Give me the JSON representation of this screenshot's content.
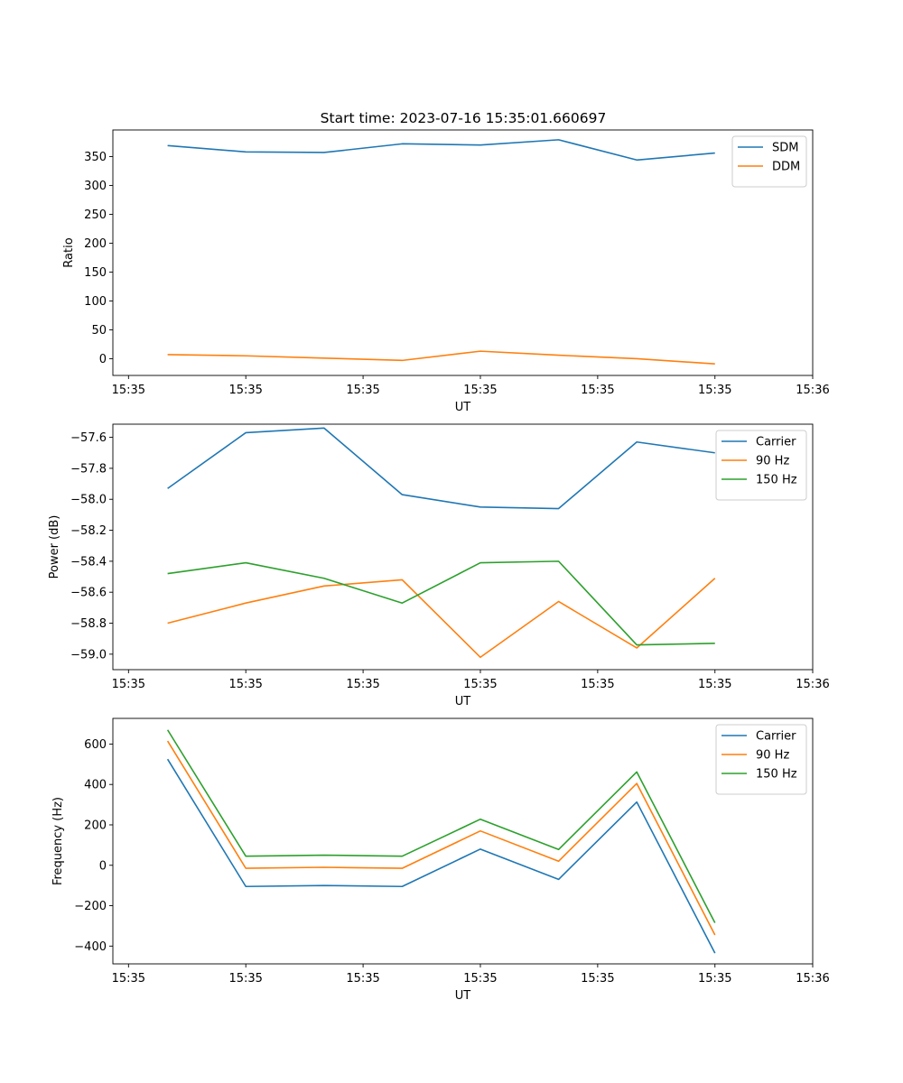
{
  "title": "Start time: 2023-07-16 15:35:01.660697",
  "colors": {
    "blue": "#1f77b4",
    "orange": "#ff7f0e",
    "green": "#2ca02c"
  },
  "chart_data": [
    {
      "type": "line",
      "title": "Start time: 2023-07-16 15:35:01.660697",
      "xlabel": "UT",
      "ylabel": "Ratio",
      "x": [
        1,
        2,
        3,
        4,
        5,
        6,
        7,
        8
      ],
      "xlim": [
        0.3,
        9.25
      ],
      "xticks": [
        0.5,
        2,
        3.5,
        5,
        6.5,
        8,
        9.25
      ],
      "xtick_labels": [
        "15:35",
        "15:35",
        "15:35",
        "15:35",
        "15:35",
        "15:35",
        "15:36"
      ],
      "ylim": [
        -29,
        396
      ],
      "yticks": [
        0,
        50,
        100,
        150,
        200,
        250,
        300,
        350
      ],
      "ytick_labels": [
        "0",
        "50",
        "100",
        "150",
        "200",
        "250",
        "300",
        "350"
      ],
      "legend_position": "top-right",
      "series": [
        {
          "name": "SDM",
          "color": "#1f77b4",
          "values": [
            369,
            358,
            357,
            372,
            370,
            379,
            344,
            356
          ]
        },
        {
          "name": "DDM",
          "color": "#ff7f0e",
          "values": [
            7,
            5,
            1,
            -3,
            13,
            6,
            0,
            -9
          ]
        }
      ]
    },
    {
      "type": "line",
      "title": "",
      "xlabel": "UT",
      "ylabel": "Power (dB)",
      "x": [
        1,
        2,
        3,
        4,
        5,
        6,
        7,
        8
      ],
      "xlim": [
        0.3,
        9.25
      ],
      "xticks": [
        0.5,
        2,
        3.5,
        5,
        6.5,
        8,
        9.25
      ],
      "xtick_labels": [
        "15:35",
        "15:35",
        "15:35",
        "15:35",
        "15:35",
        "15:35",
        "15:36"
      ],
      "ylim": [
        -59.1,
        -57.515
      ],
      "yticks": [
        -59.0,
        -58.8,
        -58.6,
        -58.4,
        -58.2,
        -58.0,
        -57.8,
        -57.6
      ],
      "ytick_labels": [
        "−59.0",
        "−58.8",
        "−58.6",
        "−58.4",
        "−58.2",
        "−58.0",
        "−57.8",
        "−57.6"
      ],
      "legend_position": "top-right",
      "series": [
        {
          "name": "Carrier",
          "color": "#1f77b4",
          "values": [
            -57.93,
            -57.57,
            -57.54,
            -57.97,
            -58.05,
            -58.06,
            -57.63,
            -57.7
          ]
        },
        {
          "name": "90 Hz",
          "color": "#ff7f0e",
          "values": [
            -58.8,
            -58.67,
            -58.56,
            -58.52,
            -59.02,
            -58.66,
            -58.96,
            -58.51
          ]
        },
        {
          "name": "150 Hz",
          "color": "#2ca02c",
          "values": [
            -58.48,
            -58.41,
            -58.51,
            -58.67,
            -58.41,
            -58.4,
            -58.94,
            -58.93
          ]
        }
      ]
    },
    {
      "type": "line",
      "title": "",
      "xlabel": "UT",
      "ylabel": "Frequency (Hz)",
      "x": [
        1,
        2,
        3,
        4,
        5,
        6,
        7,
        8
      ],
      "xlim": [
        0.3,
        9.25
      ],
      "xticks": [
        0.5,
        2,
        3.5,
        5,
        6.5,
        8,
        9.25
      ],
      "xtick_labels": [
        "15:35",
        "15:35",
        "15:35",
        "15:35",
        "15:35",
        "15:35",
        "15:36"
      ],
      "ylim": [
        -488,
        727
      ],
      "yticks": [
        -400,
        -200,
        0,
        200,
        400,
        600
      ],
      "ytick_labels": [
        "−400",
        "−200",
        "0",
        "200",
        "400",
        "600"
      ],
      "legend_position": "top-right",
      "series": [
        {
          "name": "Carrier",
          "color": "#1f77b4",
          "values": [
            525,
            -105,
            -100,
            -105,
            80,
            -70,
            313,
            -435
          ]
        },
        {
          "name": "90 Hz",
          "color": "#ff7f0e",
          "values": [
            615,
            -15,
            -10,
            -15,
            170,
            20,
            405,
            -345
          ]
        },
        {
          "name": "150 Hz",
          "color": "#2ca02c",
          "values": [
            670,
            45,
            50,
            45,
            228,
            78,
            462,
            -285
          ]
        }
      ]
    }
  ]
}
